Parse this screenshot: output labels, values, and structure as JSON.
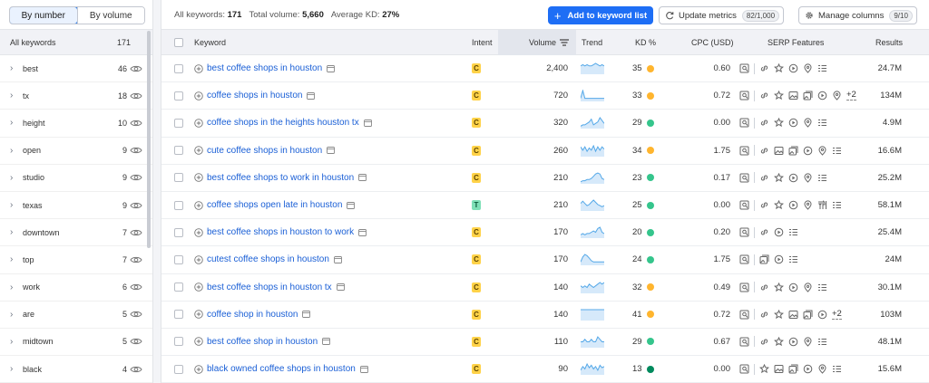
{
  "sidebar": {
    "toggle": {
      "by_number": "By number",
      "by_volume": "By volume",
      "active": "by_number"
    },
    "header": {
      "label": "All keywords",
      "count": "171"
    },
    "groups": [
      {
        "word": "best",
        "count": "46"
      },
      {
        "word": "tx",
        "count": "18"
      },
      {
        "word": "height",
        "count": "10"
      },
      {
        "word": "open",
        "count": "9"
      },
      {
        "word": "studio",
        "count": "9"
      },
      {
        "word": "texas",
        "count": "9"
      },
      {
        "word": "downtown",
        "count": "7"
      },
      {
        "word": "top",
        "count": "7"
      },
      {
        "word": "work",
        "count": "6"
      },
      {
        "word": "are",
        "count": "5"
      },
      {
        "word": "midtown",
        "count": "5"
      },
      {
        "word": "black",
        "count": "4"
      }
    ]
  },
  "topbar": {
    "all_keywords_label": "All keywords:",
    "all_keywords_value": "171",
    "total_volume_label": "Total volume:",
    "total_volume_value": "5,660",
    "avg_kd_label": "Average KD:",
    "avg_kd_value": "27%",
    "add_button": "Add to keyword list",
    "update_metrics": "Update metrics",
    "update_metrics_count": "82/1,000",
    "manage_columns": "Manage columns",
    "manage_columns_count": "9/10"
  },
  "columns": {
    "keyword": "Keyword",
    "intent": "Intent",
    "volume": "Volume",
    "trend": "Trend",
    "kd": "KD %",
    "cpc": "CPC (USD)",
    "serp": "SERP Features",
    "results": "Results"
  },
  "colors": {
    "accent": "#1e6ef5",
    "link": "#1a5fd6",
    "kd_orange": "#ffb52e",
    "kd_green": "#35c58c",
    "kd_dark_green": "#008a5d",
    "trend": "#54a8e8"
  },
  "rows": [
    {
      "keyword": "best coffee shops in houston",
      "intent": "C",
      "volume": "2,400",
      "kd": "35",
      "kd_level": "orange",
      "cpc": "0.60",
      "results": "24.7M",
      "trend": [
        6,
        7,
        6,
        7,
        6,
        6,
        7,
        8,
        7,
        6,
        7,
        6
      ],
      "serp": [
        "local-pack",
        "sitelinks",
        "star-reviews",
        "video",
        "location",
        "list"
      ],
      "serp_more": ""
    },
    {
      "keyword": "coffee shops in houston",
      "intent": "C",
      "volume": "720",
      "kd": "33",
      "kd_level": "orange",
      "cpc": "0.72",
      "results": "134M",
      "trend": [
        2,
        9,
        2,
        2,
        2,
        2,
        2,
        2,
        2,
        2,
        2,
        2
      ],
      "serp": [
        "local-pack",
        "sitelinks",
        "star-reviews",
        "image",
        "image-pack",
        "video",
        "location"
      ],
      "serp_more": "+2"
    },
    {
      "keyword": "coffee shops in the heights houston tx",
      "intent": "C",
      "volume": "320",
      "kd": "29",
      "kd_level": "green",
      "cpc": "0.00",
      "results": "4.9M",
      "trend": [
        1,
        2,
        2,
        3,
        4,
        6,
        2,
        3,
        4,
        7,
        5,
        3
      ],
      "serp": [
        "local-pack",
        "sitelinks",
        "star-reviews",
        "video",
        "location",
        "list"
      ],
      "serp_more": ""
    },
    {
      "keyword": "cute coffee shops in houston",
      "intent": "C",
      "volume": "260",
      "kd": "34",
      "kd_level": "orange",
      "cpc": "1.75",
      "results": "16.6M",
      "trend": [
        8,
        5,
        8,
        4,
        7,
        5,
        9,
        4,
        8,
        5,
        8,
        6
      ],
      "serp": [
        "local-pack",
        "sitelinks",
        "image",
        "image-pack",
        "video",
        "location",
        "list"
      ],
      "serp_more": ""
    },
    {
      "keyword": "best coffee shops to work in houston",
      "intent": "C",
      "volume": "210",
      "kd": "23",
      "kd_level": "green",
      "cpc": "0.17",
      "results": "25.2M",
      "trend": [
        1,
        2,
        2,
        3,
        3,
        4,
        6,
        8,
        9,
        8,
        4,
        3
      ],
      "serp": [
        "local-pack",
        "sitelinks",
        "star-reviews",
        "video",
        "location",
        "list"
      ],
      "serp_more": ""
    },
    {
      "keyword": "coffee shops open late in houston",
      "intent": "T",
      "volume": "210",
      "kd": "25",
      "kd_level": "green",
      "cpc": "0.00",
      "results": "58.1M",
      "trend": [
        6,
        8,
        6,
        4,
        5,
        7,
        9,
        7,
        5,
        4,
        3,
        4
      ],
      "serp": [
        "local-pack",
        "sitelinks",
        "star-reviews",
        "video",
        "location",
        "menu",
        "list"
      ],
      "serp_more": ""
    },
    {
      "keyword": "best coffee shops in houston to work",
      "intent": "C",
      "volume": "170",
      "kd": "20",
      "kd_level": "green",
      "cpc": "0.20",
      "results": "25.4M",
      "trend": [
        2,
        3,
        2,
        3,
        3,
        4,
        5,
        4,
        7,
        8,
        4,
        3
      ],
      "serp": [
        "local-pack",
        "sitelinks",
        "video",
        "list"
      ],
      "serp_more": ""
    },
    {
      "keyword": "cutest coffee shops in houston",
      "intent": "C",
      "volume": "170",
      "kd": "24",
      "kd_level": "green",
      "cpc": "1.75",
      "results": "24M",
      "trend": [
        2,
        6,
        8,
        7,
        5,
        3,
        2,
        2,
        2,
        2,
        2,
        2
      ],
      "serp": [
        "local-pack",
        "image-pack",
        "video",
        "list"
      ],
      "serp_more": ""
    },
    {
      "keyword": "best coffee shops in houston tx",
      "intent": "C",
      "volume": "140",
      "kd": "32",
      "kd_level": "orange",
      "cpc": "0.49",
      "results": "30.1M",
      "trend": [
        4,
        3,
        4,
        3,
        5,
        4,
        3,
        4,
        5,
        6,
        5,
        6
      ],
      "serp": [
        "local-pack",
        "sitelinks",
        "star-reviews",
        "video",
        "location",
        "list"
      ],
      "serp_more": ""
    },
    {
      "keyword": "coffee shop in houston",
      "intent": "C",
      "volume": "140",
      "kd": "41",
      "kd_level": "orange",
      "cpc": "0.72",
      "results": "103M",
      "trend": [
        2,
        2,
        2,
        2,
        2,
        2,
        2,
        2,
        2,
        2,
        2,
        2
      ],
      "serp": [
        "local-pack",
        "sitelinks",
        "star-reviews",
        "image",
        "image-pack",
        "video"
      ],
      "serp_more": "+2"
    },
    {
      "keyword": "best coffee shop in houston",
      "intent": "C",
      "volume": "110",
      "kd": "29",
      "kd_level": "green",
      "cpc": "0.67",
      "results": "48.1M",
      "trend": [
        2,
        2,
        3,
        2,
        2,
        3,
        2,
        2,
        4,
        3,
        2,
        2
      ],
      "serp": [
        "local-pack",
        "sitelinks",
        "star-reviews",
        "video",
        "location",
        "list"
      ],
      "serp_more": ""
    },
    {
      "keyword": "black owned coffee shops in houston",
      "intent": "C",
      "volume": "90",
      "kd": "13",
      "kd_level": "dark-green",
      "cpc": "0.00",
      "results": "15.6M",
      "trend": [
        3,
        6,
        4,
        8,
        5,
        7,
        4,
        6,
        3,
        7,
        5,
        6
      ],
      "serp": [
        "local-pack",
        "star-reviews",
        "image",
        "image-pack",
        "video",
        "location",
        "list"
      ],
      "serp_more": ""
    }
  ]
}
